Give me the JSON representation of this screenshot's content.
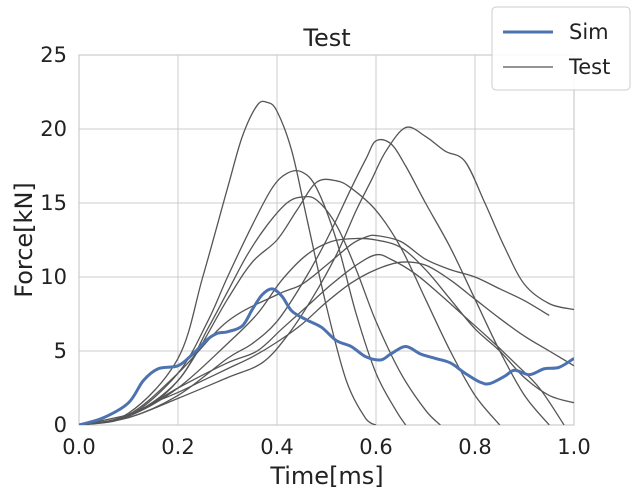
{
  "chart_data": {
    "type": "line",
    "title": "Test",
    "xlabel": "Time[ms]",
    "ylabel": "Force[kN]",
    "xlim": [
      0.0,
      1.0
    ],
    "ylim": [
      0,
      25
    ],
    "xticks": [
      0.0,
      0.2,
      0.4,
      0.6,
      0.8,
      1.0
    ],
    "xtick_labels": [
      "0.0",
      "0.2",
      "0.4",
      "0.6",
      "0.8",
      "1.0"
    ],
    "yticks": [
      0,
      5,
      10,
      15,
      20,
      25
    ],
    "ytick_labels": [
      "0",
      "5",
      "10",
      "15",
      "20",
      "25"
    ],
    "grid": true,
    "legend": {
      "placement": "top-right",
      "entries": [
        {
          "label": "Sim",
          "color": "#4c72b0",
          "style": "thick"
        },
        {
          "label": "Test",
          "color": "#555555",
          "style": "thin"
        }
      ]
    },
    "series": [
      {
        "name": "Sim",
        "color": "#4c72b0",
        "x": [
          0,
          0.05,
          0.1,
          0.13,
          0.16,
          0.2,
          0.23,
          0.26,
          0.28,
          0.3,
          0.33,
          0.35,
          0.37,
          0.39,
          0.41,
          0.43,
          0.46,
          0.49,
          0.52,
          0.55,
          0.58,
          0.61,
          0.63,
          0.66,
          0.69,
          0.72,
          0.75,
          0.78,
          0.81,
          0.83,
          0.86,
          0.88,
          0.91,
          0.94,
          0.97,
          1.0
        ],
        "y": [
          0,
          0.5,
          1.5,
          3.0,
          3.8,
          4.0,
          4.8,
          5.8,
          6.2,
          6.3,
          6.7,
          7.8,
          8.8,
          9.2,
          8.7,
          7.7,
          7.1,
          6.6,
          5.7,
          5.3,
          4.6,
          4.4,
          4.8,
          5.3,
          4.8,
          4.5,
          4.2,
          3.5,
          2.9,
          2.8,
          3.3,
          3.7,
          3.4,
          3.8,
          3.9,
          4.5
        ]
      },
      {
        "name": "Test",
        "color": "#555555",
        "curves": [
          {
            "x": [
              0,
              0.1,
              0.2,
              0.25,
              0.3,
              0.33,
              0.36,
              0.38,
              0.4,
              0.43,
              0.46,
              0.5,
              0.54,
              0.58,
              0.6
            ],
            "y": [
              0,
              0.8,
              4.5,
              10,
              16,
              19.5,
              21.6,
              21.8,
              21.2,
              18.5,
              14,
              8,
              3,
              0.4,
              0
            ]
          },
          {
            "x": [
              0,
              0.1,
              0.2,
              0.26,
              0.3,
              0.35,
              0.39,
              0.42,
              0.45,
              0.48,
              0.52,
              0.56,
              0.6,
              0.64,
              0.66
            ],
            "y": [
              0,
              0.6,
              3.5,
              7,
              10,
              13.5,
              16,
              17,
              17.1,
              16,
              12.5,
              7.5,
              3.5,
              1,
              0
            ]
          },
          {
            "x": [
              0,
              0.1,
              0.2,
              0.26,
              0.3,
              0.34,
              0.38,
              0.42,
              0.45,
              0.48,
              0.52,
              0.56,
              0.6,
              0.65,
              0.7,
              0.73
            ],
            "y": [
              0,
              0.6,
              3,
              6.5,
              9,
              11.5,
              13.5,
              15,
              15.4,
              15.2,
              13.5,
              10.5,
              7,
              3.5,
              1,
              0
            ]
          },
          {
            "x": [
              0,
              0.1,
              0.2,
              0.3,
              0.35,
              0.4,
              0.44,
              0.48,
              0.52,
              0.55,
              0.6,
              0.65,
              0.7,
              0.75,
              0.8,
              0.85
            ],
            "y": [
              0,
              0.6,
              3,
              8.5,
              11,
              12.5,
              14.5,
              16.4,
              16.5,
              16,
              14.5,
              12,
              8.5,
              5,
              2,
              0
            ]
          },
          {
            "x": [
              0,
              0.1,
              0.2,
              0.3,
              0.35,
              0.4,
              0.45,
              0.5,
              0.55,
              0.58,
              0.6,
              0.63,
              0.66,
              0.7,
              0.75,
              0.8,
              0.85,
              0.9,
              0.95
            ],
            "y": [
              0,
              0.5,
              2,
              4.5,
              5.5,
              7,
              9.5,
              12.5,
              16,
              18,
              19.2,
              19,
              17.5,
              15,
              12,
              8.5,
              5,
              2,
              0
            ]
          },
          {
            "x": [
              0,
              0.1,
              0.2,
              0.3,
              0.37,
              0.42,
              0.47,
              0.52,
              0.56,
              0.59,
              0.62,
              0.66,
              0.7,
              0.74,
              0.78,
              0.82,
              0.86,
              0.9,
              0.95,
              1.0
            ],
            "y": [
              0,
              0.5,
              1.8,
              3.2,
              4.2,
              6,
              8.5,
              11.5,
              14.5,
              16.5,
              18.5,
              20.1,
              19.5,
              18.5,
              17.8,
              15,
              12,
              9.5,
              8.2,
              7.8
            ]
          },
          {
            "x": [
              0,
              0.1,
              0.2,
              0.3,
              0.4,
              0.45,
              0.5,
              0.55,
              0.58,
              0.6,
              0.65,
              0.7,
              0.75,
              0.8,
              0.85,
              0.9,
              0.95
            ],
            "y": [
              0,
              0.7,
              3.5,
              7,
              8.8,
              9.5,
              10.8,
              12.2,
              12.7,
              12.8,
              12.4,
              11.2,
              10.5,
              10,
              9.2,
              8.4,
              7.4
            ]
          },
          {
            "x": [
              0,
              0.1,
              0.2,
              0.3,
              0.36,
              0.41,
              0.46,
              0.51,
              0.56,
              0.6,
              0.63,
              0.68,
              0.73,
              0.78,
              0.83,
              0.88,
              0.93,
              0.98
            ],
            "y": [
              0,
              0.6,
              2.5,
              4.2,
              5,
              6.5,
              8,
              9.5,
              10.8,
              11.5,
              11.2,
              10.2,
              8.8,
              7.3,
              5.8,
              4.2,
              2.5,
              0
            ]
          },
          {
            "x": [
              0,
              0.1,
              0.2,
              0.3,
              0.36,
              0.41,
              0.46,
              0.51,
              0.56,
              0.6,
              0.65,
              0.7,
              0.75,
              0.8,
              0.85,
              0.9,
              0.95,
              1.0
            ],
            "y": [
              0,
              0.6,
              2.5,
              5.5,
              7.5,
              9.8,
              11.5,
              12.4,
              12.6,
              12.5,
              12,
              10.5,
              8.5,
              6.5,
              5,
              3.2,
              2,
              1.5
            ]
          },
          {
            "x": [
              0,
              0.1,
              0.15,
              0.2,
              0.25,
              0.3,
              0.35,
              0.4,
              0.45,
              0.5,
              0.55,
              0.6,
              0.65,
              0.7,
              0.75,
              0.8,
              0.85,
              0.9,
              0.95,
              1.0
            ],
            "y": [
              0,
              0.7,
              1.5,
              2.2,
              3,
              3.8,
              4.6,
              5.6,
              6.8,
              8.3,
              9.6,
              10.5,
              11,
              10.8,
              9.8,
              8.5,
              7.2,
              6,
              5,
              4
            ]
          }
        ]
      }
    ]
  }
}
